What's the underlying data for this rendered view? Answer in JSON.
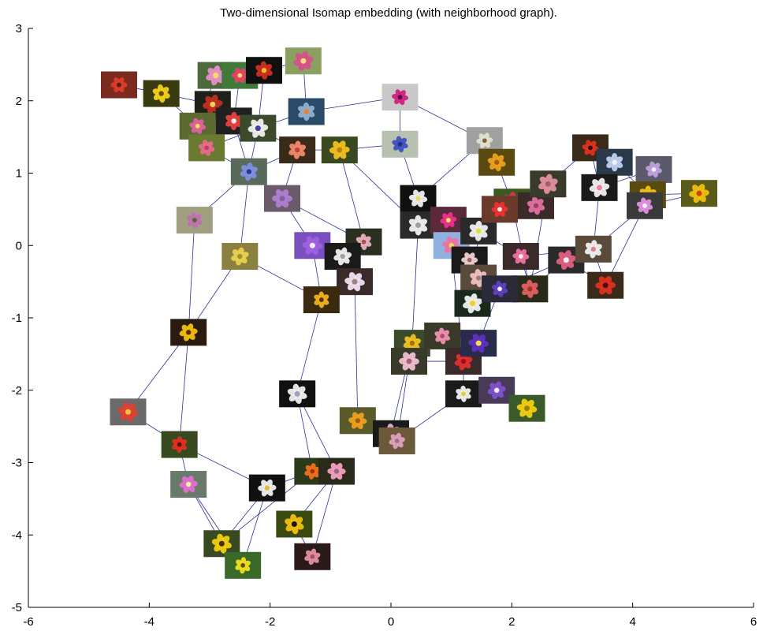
{
  "chart_data": {
    "type": "scatter",
    "title": "Two-dimensional Isomap embedding (with neighborhood graph).",
    "xlabel": "",
    "ylabel": "",
    "xlim": [
      -6,
      6
    ],
    "ylim": [
      -5,
      3
    ],
    "xticks": [
      "-6",
      "-4",
      "-2",
      "0",
      "2",
      "4",
      "6"
    ],
    "yticks": [
      "3",
      "2",
      "1",
      "0",
      "-1",
      "-2",
      "-3",
      "-4",
      "-5"
    ],
    "grid": false,
    "points": [
      {
        "x": -4.5,
        "y": 2.22,
        "bg": "#7a2a1e",
        "petal": "#e23b2a",
        "center": "#5a1a10"
      },
      {
        "x": -3.8,
        "y": 2.1,
        "bg": "#3a3a10",
        "petal": "#f2d21a",
        "center": "#6a4a10"
      },
      {
        "x": -2.9,
        "y": 2.35,
        "bg": "#4d6a3a",
        "petal": "#e890c8",
        "center": "#f0e060"
      },
      {
        "x": -2.5,
        "y": 2.35,
        "bg": "#3f7a3a",
        "petal": "#e8406a",
        "center": "#fce05a"
      },
      {
        "x": -2.1,
        "y": 2.42,
        "bg": "#101010",
        "petal": "#d03020",
        "center": "#f0c020"
      },
      {
        "x": -1.45,
        "y": 2.55,
        "bg": "#8aa060",
        "petal": "#d8508a",
        "center": "#f0e080"
      },
      {
        "x": 0.15,
        "y": 2.05,
        "bg": "#c8c8c8",
        "petal": "#d02080",
        "center": "#501040"
      },
      {
        "x": -1.4,
        "y": 1.85,
        "bg": "#2a4a6a",
        "petal": "#90b0d0",
        "center": "#f08020"
      },
      {
        "x": -2.95,
        "y": 1.95,
        "bg": "#20201a",
        "petal": "#c03020",
        "center": "#f0d060"
      },
      {
        "x": -3.2,
        "y": 1.65,
        "bg": "#5a6a30",
        "petal": "#e060a0",
        "center": "#f0e050"
      },
      {
        "x": -2.6,
        "y": 1.72,
        "bg": "#202020",
        "petal": "#e84040",
        "center": "#f0f0f0"
      },
      {
        "x": -2.2,
        "y": 1.62,
        "bg": "#3a4a2a",
        "petal": "#f0f0f0",
        "center": "#4040a0"
      },
      {
        "x": -3.05,
        "y": 1.35,
        "bg": "#6a7a30",
        "petal": "#e86a8a",
        "center": "#c04060"
      },
      {
        "x": -1.55,
        "y": 1.32,
        "bg": "#3a2a1a",
        "petal": "#f08a6a",
        "center": "#c04040"
      },
      {
        "x": -0.85,
        "y": 1.32,
        "bg": "#3a4a20",
        "petal": "#f0c020",
        "center": "#c08010"
      },
      {
        "x": 0.15,
        "y": 1.4,
        "bg": "#b8c0b0",
        "petal": "#4050c0",
        "center": "#203080"
      },
      {
        "x": -2.35,
        "y": 1.02,
        "bg": "#5a6a5a",
        "petal": "#8090e0",
        "center": "#30309a"
      },
      {
        "x": -1.8,
        "y": 0.65,
        "bg": "#6a5a6a",
        "petal": "#b080d0",
        "center": "#8060a0"
      },
      {
        "x": -3.25,
        "y": 0.35,
        "bg": "#a0a080",
        "petal": "#c070b0",
        "center": "#4a6a30"
      },
      {
        "x": -2.5,
        "y": -0.15,
        "bg": "#8a8040",
        "petal": "#e8d050",
        "center": "#a09030"
      },
      {
        "x": -1.3,
        "y": 0.0,
        "bg": "#7a50c0",
        "petal": "#a060e0",
        "center": "#f0f0f0"
      },
      {
        "x": -0.45,
        "y": 0.05,
        "bg": "#2a3020",
        "petal": "#e8b0c0",
        "center": "#a05050"
      },
      {
        "x": -0.8,
        "y": -0.15,
        "bg": "#1a1a1a",
        "petal": "#f0f0f0",
        "center": "#a0a0a0"
      },
      {
        "x": -0.6,
        "y": -0.5,
        "bg": "#3a2a2a",
        "petal": "#f0e0f0",
        "center": "#a08080"
      },
      {
        "x": -1.15,
        "y": -0.75,
        "bg": "#3a2a10",
        "petal": "#f0b020",
        "center": "#5a3010"
      },
      {
        "x": -3.35,
        "y": -1.2,
        "bg": "#2a1a10",
        "petal": "#f0c010",
        "center": "#5a2a10"
      },
      {
        "x": -4.35,
        "y": -2.3,
        "bg": "#6a6a6a",
        "petal": "#e04030",
        "center": "#f0c040"
      },
      {
        "x": -3.5,
        "y": -2.75,
        "bg": "#3a4a20",
        "petal": "#e03020",
        "center": "#601010"
      },
      {
        "x": -3.35,
        "y": -3.3,
        "bg": "#6a7a6a",
        "petal": "#e070d0",
        "center": "#f0f0a0"
      },
      {
        "x": -2.8,
        "y": -4.12,
        "bg": "#3a4a20",
        "petal": "#f0d010",
        "center": "#4a2a10"
      },
      {
        "x": -2.45,
        "y": -4.42,
        "bg": "#3a6a2a",
        "petal": "#f0e020",
        "center": "#6a4a10"
      },
      {
        "x": -2.05,
        "y": -3.35,
        "bg": "#101010",
        "petal": "#f0f0f0",
        "center": "#e0c030"
      },
      {
        "x": -1.55,
        "y": -2.05,
        "bg": "#101010",
        "petal": "#f0f0f0",
        "center": "#a0a0c0"
      },
      {
        "x": -1.3,
        "y": -3.12,
        "bg": "#2a3a1a",
        "petal": "#f07020",
        "center": "#a03010"
      },
      {
        "x": -0.9,
        "y": -3.12,
        "bg": "#2a2a1a",
        "petal": "#f0a0c0",
        "center": "#a06080"
      },
      {
        "x": -1.6,
        "y": -3.85,
        "bg": "#3a4a10",
        "petal": "#f0c010",
        "center": "#201010"
      },
      {
        "x": -1.3,
        "y": -4.3,
        "bg": "#2a1a1a",
        "petal": "#e090a0",
        "center": "#a05060"
      },
      {
        "x": -0.55,
        "y": -2.42,
        "bg": "#5a5a2a",
        "petal": "#f0a020",
        "center": "#a06010"
      },
      {
        "x": 0.0,
        "y": -2.6,
        "bg": "#1a1a1a",
        "petal": "#e0b0d0",
        "center": "#8a5070"
      },
      {
        "x": 0.1,
        "y": -2.7,
        "bg": "#6a5a3a",
        "petal": "#e0a0c0",
        "center": "#a07080"
      },
      {
        "x": 0.45,
        "y": 0.65,
        "bg": "#101010",
        "petal": "#f0f0f0",
        "center": "#e0e060"
      },
      {
        "x": 0.45,
        "y": 0.28,
        "bg": "#2a2a2a",
        "petal": "#f0f0f0",
        "center": "#a0a0a0"
      },
      {
        "x": 0.95,
        "y": 0.35,
        "bg": "#5a2a3a",
        "petal": "#f03090",
        "center": "#f0f060"
      },
      {
        "x": 1.0,
        "y": 0.0,
        "bg": "#90b0e0",
        "petal": "#f070a0",
        "center": "#e0e050"
      },
      {
        "x": 1.45,
        "y": 0.2,
        "bg": "#2a2a2a",
        "petal": "#f0f0f0",
        "center": "#e0e040"
      },
      {
        "x": 1.55,
        "y": 1.45,
        "bg": "#a0a0a0",
        "petal": "#e0e0d0",
        "center": "#806040"
      },
      {
        "x": 1.75,
        "y": 1.15,
        "bg": "#5a4a10",
        "petal": "#f0a020",
        "center": "#a06010"
      },
      {
        "x": 2.0,
        "y": 0.6,
        "bg": "#3a5a20",
        "petal": "#e03060",
        "center": "#f0e040"
      },
      {
        "x": 1.8,
        "y": 0.5,
        "bg": "#6a3a2a",
        "petal": "#f03030",
        "center": "#f0f0f0"
      },
      {
        "x": 2.4,
        "y": 0.55,
        "bg": "#3a2a2a",
        "petal": "#e070a0",
        "center": "#a04060"
      },
      {
        "x": 2.6,
        "y": 0.85,
        "bg": "#3a3a2a",
        "petal": "#e090a0",
        "center": "#a06070"
      },
      {
        "x": 1.3,
        "y": -0.2,
        "bg": "#1a1a1a",
        "petal": "#f0d0d0",
        "center": "#a06060"
      },
      {
        "x": 1.45,
        "y": -0.45,
        "bg": "#5a4a3a",
        "petal": "#f0c0c0",
        "center": "#a08070"
      },
      {
        "x": 1.35,
        "y": -0.8,
        "bg": "#1a2a1a",
        "petal": "#f0f0f0",
        "center": "#f0d020"
      },
      {
        "x": 2.15,
        "y": -0.15,
        "bg": "#3a2a2a",
        "petal": "#f070a0",
        "center": "#f0f0f0"
      },
      {
        "x": 2.3,
        "y": -0.6,
        "bg": "#2a2a1a",
        "petal": "#e06060",
        "center": "#a03030"
      },
      {
        "x": 2.9,
        "y": -0.2,
        "bg": "#2a2a2a",
        "petal": "#e06080",
        "center": "#f0f0f0"
      },
      {
        "x": 3.3,
        "y": 1.35,
        "bg": "#3a2a1a",
        "petal": "#e03020",
        "center": "#201010"
      },
      {
        "x": 3.7,
        "y": 1.15,
        "bg": "#2a3a4a",
        "petal": "#c0d0f0",
        "center": "#f0f0f0"
      },
      {
        "x": 3.45,
        "y": 0.8,
        "bg": "#1a1a1a",
        "petal": "#f0f0f0",
        "center": "#f080a0"
      },
      {
        "x": 4.35,
        "y": 1.05,
        "bg": "#5a5a6a",
        "petal": "#c0a0e0",
        "center": "#f0f0f0"
      },
      {
        "x": 4.25,
        "y": 0.7,
        "bg": "#5a4a10",
        "petal": "#f0c020",
        "center": "#c08010"
      },
      {
        "x": 5.1,
        "y": 0.72,
        "bg": "#5a5a1a",
        "petal": "#f0c010",
        "center": "#d04010"
      },
      {
        "x": 4.2,
        "y": 0.55,
        "bg": "#3a3a3a",
        "petal": "#e090e0",
        "center": "#f0f0f0"
      },
      {
        "x": 3.35,
        "y": -0.05,
        "bg": "#5a4a3a",
        "petal": "#f0f0f0",
        "center": "#e08090"
      },
      {
        "x": 3.55,
        "y": -0.55,
        "bg": "#3a2a1a",
        "petal": "#e03020",
        "center": "#501010"
      },
      {
        "x": 1.8,
        "y": -0.6,
        "bg": "#2a2a3a",
        "petal": "#6040c0",
        "center": "#f0f0f0"
      },
      {
        "x": 0.35,
        "y": -1.35,
        "bg": "#3a4a2a",
        "petal": "#f0c020",
        "center": "#a07010"
      },
      {
        "x": 0.3,
        "y": -1.6,
        "bg": "#3a3a2a",
        "petal": "#f0c0d0",
        "center": "#a06080"
      },
      {
        "x": 0.85,
        "y": -1.25,
        "bg": "#3a3a2a",
        "petal": "#f090b0",
        "center": "#a05070"
      },
      {
        "x": 1.2,
        "y": -1.6,
        "bg": "#3a2a2a",
        "petal": "#e03030",
        "center": "#a01010"
      },
      {
        "x": 1.45,
        "y": -1.35,
        "bg": "#2a2a4a",
        "petal": "#6030c0",
        "center": "#f0e050"
      },
      {
        "x": 1.2,
        "y": -2.05,
        "bg": "#1a1a1a",
        "petal": "#f0f0f0",
        "center": "#e0d030"
      },
      {
        "x": 1.75,
        "y": -2.0,
        "bg": "#4a3a5a",
        "petal": "#8050d0",
        "center": "#f0f0f0"
      },
      {
        "x": 2.25,
        "y": -2.25,
        "bg": "#3a5a2a",
        "petal": "#f0d010",
        "center": "#a08010"
      }
    ],
    "edges": [
      [
        0,
        1
      ],
      [
        1,
        9
      ],
      [
        1,
        8
      ],
      [
        2,
        3
      ],
      [
        3,
        4
      ],
      [
        4,
        5
      ],
      [
        5,
        7
      ],
      [
        7,
        6
      ],
      [
        6,
        15
      ],
      [
        6,
        45
      ],
      [
        3,
        10
      ],
      [
        4,
        11
      ],
      [
        8,
        9
      ],
      [
        9,
        10
      ],
      [
        10,
        11
      ],
      [
        11,
        12
      ],
      [
        11,
        16
      ],
      [
        12,
        16
      ],
      [
        10,
        16
      ],
      [
        16,
        13
      ],
      [
        13,
        14
      ],
      [
        14,
        15
      ],
      [
        15,
        40
      ],
      [
        13,
        17
      ],
      [
        16,
        17
      ],
      [
        17,
        20
      ],
      [
        17,
        21
      ],
      [
        14,
        21
      ],
      [
        16,
        18
      ],
      [
        16,
        19
      ],
      [
        18,
        25
      ],
      [
        19,
        25
      ],
      [
        19,
        24
      ],
      [
        24,
        20
      ],
      [
        21,
        22
      ],
      [
        22,
        23
      ],
      [
        23,
        37
      ],
      [
        20,
        22
      ],
      [
        25,
        26
      ],
      [
        25,
        27
      ],
      [
        26,
        27
      ],
      [
        27,
        28
      ],
      [
        28,
        29
      ],
      [
        28,
        30
      ],
      [
        29,
        30
      ],
      [
        27,
        31
      ],
      [
        31,
        30
      ],
      [
        31,
        29
      ],
      [
        31,
        33
      ],
      [
        32,
        33
      ],
      [
        32,
        34
      ],
      [
        33,
        34
      ],
      [
        34,
        35
      ],
      [
        34,
        36
      ],
      [
        35,
        36
      ],
      [
        33,
        29
      ],
      [
        24,
        32
      ],
      [
        38,
        39
      ],
      [
        38,
        67
      ],
      [
        39,
        68
      ],
      [
        39,
        72
      ],
      [
        37,
        38
      ],
      [
        67,
        68
      ],
      [
        67,
        69
      ],
      [
        68,
        70
      ],
      [
        69,
        70
      ],
      [
        70,
        71
      ],
      [
        70,
        72
      ],
      [
        72,
        73
      ],
      [
        71,
        66
      ],
      [
        73,
        74
      ],
      [
        66,
        56
      ],
      [
        66,
        52
      ],
      [
        52,
        53
      ],
      [
        53,
        51
      ],
      [
        51,
        43
      ],
      [
        43,
        42
      ],
      [
        42,
        41
      ],
      [
        41,
        40
      ],
      [
        40,
        45
      ],
      [
        45,
        46
      ],
      [
        46,
        47
      ],
      [
        47,
        48
      ],
      [
        48,
        49
      ],
      [
        49,
        50
      ],
      [
        50,
        57
      ],
      [
        57,
        58
      ],
      [
        58,
        59
      ],
      [
        59,
        60
      ],
      [
        60,
        61
      ],
      [
        61,
        62
      ],
      [
        62,
        63
      ],
      [
        63,
        64
      ],
      [
        64,
        65
      ],
      [
        58,
        61
      ],
      [
        57,
        59
      ],
      [
        59,
        64
      ],
      [
        50,
        55
      ],
      [
        55,
        56
      ],
      [
        56,
        65
      ],
      [
        54,
        55
      ],
      [
        54,
        64
      ],
      [
        44,
        54
      ],
      [
        44,
        42
      ],
      [
        44,
        53
      ],
      [
        41,
        67
      ],
      [
        42,
        70
      ],
      [
        53,
        66
      ],
      [
        65,
        63
      ],
      [
        47,
        55
      ],
      [
        12,
        8
      ],
      [
        2,
        9
      ],
      [
        13,
        11
      ],
      [
        7,
        11
      ],
      [
        14,
        41
      ]
    ]
  }
}
